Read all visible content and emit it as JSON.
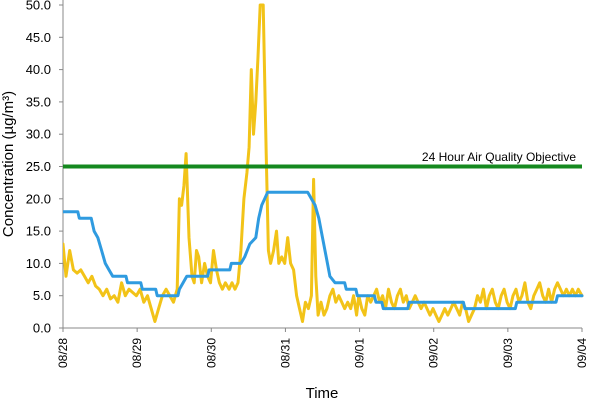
{
  "chart_data": {
    "type": "line",
    "title": "",
    "xlabel": "Time",
    "ylabel": "Concentration (µg/m³)",
    "ylim": [
      0,
      50
    ],
    "y_ticks": [
      "0.0",
      "5.0",
      "10.0",
      "15.0",
      "20.0",
      "25.0",
      "30.0",
      "35.0",
      "40.0",
      "45.0",
      "50.0"
    ],
    "x_ticks": [
      "08/28",
      "08/29",
      "08/30",
      "08/31",
      "09/01",
      "09/02",
      "09/03",
      "09/04"
    ],
    "x_domain": [
      0,
      7
    ],
    "grid": false,
    "colors": {
      "yellow": "#f2c318",
      "blue": "#2f9be0",
      "objective": "#15891f"
    },
    "objective": {
      "value": 25,
      "label": "24 Hour Air Quality Objective"
    },
    "series": [
      {
        "color": "#f2c318",
        "points": [
          [
            0.0,
            13
          ],
          [
            0.04,
            8
          ],
          [
            0.09,
            12
          ],
          [
            0.14,
            9
          ],
          [
            0.19,
            8.5
          ],
          [
            0.24,
            9
          ],
          [
            0.29,
            8
          ],
          [
            0.34,
            7
          ],
          [
            0.39,
            8
          ],
          [
            0.44,
            6.5
          ],
          [
            0.49,
            6
          ],
          [
            0.54,
            5
          ],
          [
            0.59,
            6
          ],
          [
            0.64,
            4.5
          ],
          [
            0.69,
            5
          ],
          [
            0.74,
            4
          ],
          [
            0.79,
            7
          ],
          [
            0.84,
            5
          ],
          [
            0.89,
            6
          ],
          [
            0.94,
            5.5
          ],
          [
            0.99,
            5
          ],
          [
            1.04,
            6
          ],
          [
            1.09,
            4
          ],
          [
            1.14,
            5
          ],
          [
            1.19,
            3
          ],
          [
            1.24,
            1
          ],
          [
            1.29,
            3
          ],
          [
            1.34,
            5
          ],
          [
            1.39,
            6
          ],
          [
            1.44,
            5
          ],
          [
            1.49,
            4
          ],
          [
            1.54,
            6
          ],
          [
            1.57,
            20
          ],
          [
            1.6,
            19
          ],
          [
            1.63,
            22
          ],
          [
            1.66,
            27
          ],
          [
            1.7,
            14
          ],
          [
            1.74,
            8
          ],
          [
            1.77,
            7
          ],
          [
            1.8,
            12
          ],
          [
            1.83,
            11
          ],
          [
            1.87,
            7
          ],
          [
            1.91,
            10
          ],
          [
            1.95,
            8
          ],
          [
            1.99,
            7
          ],
          [
            2.03,
            12
          ],
          [
            2.07,
            9
          ],
          [
            2.11,
            7
          ],
          [
            2.15,
            6
          ],
          [
            2.19,
            7
          ],
          [
            2.24,
            6
          ],
          [
            2.28,
            7
          ],
          [
            2.32,
            6
          ],
          [
            2.36,
            7
          ],
          [
            2.4,
            12
          ],
          [
            2.44,
            20
          ],
          [
            2.48,
            24
          ],
          [
            2.51,
            28
          ],
          [
            2.54,
            40
          ],
          [
            2.57,
            30
          ],
          [
            2.6,
            35
          ],
          [
            2.63,
            42
          ],
          [
            2.66,
            50
          ],
          [
            2.7,
            50
          ],
          [
            2.74,
            27
          ],
          [
            2.77,
            12
          ],
          [
            2.8,
            10
          ],
          [
            2.84,
            12
          ],
          [
            2.88,
            15
          ],
          [
            2.91,
            10
          ],
          [
            2.95,
            11
          ],
          [
            2.99,
            10
          ],
          [
            3.03,
            14
          ],
          [
            3.07,
            10
          ],
          [
            3.11,
            9
          ],
          [
            3.15,
            5
          ],
          [
            3.19,
            3
          ],
          [
            3.23,
            1
          ],
          [
            3.27,
            4
          ],
          [
            3.31,
            3
          ],
          [
            3.35,
            5
          ],
          [
            3.38,
            23
          ],
          [
            3.41,
            8
          ],
          [
            3.44,
            2
          ],
          [
            3.48,
            4
          ],
          [
            3.52,
            2
          ],
          [
            3.56,
            3
          ],
          [
            3.6,
            5
          ],
          [
            3.64,
            6
          ],
          [
            3.68,
            4
          ],
          [
            3.72,
            5
          ],
          [
            3.76,
            4
          ],
          [
            3.8,
            3
          ],
          [
            3.84,
            4
          ],
          [
            3.88,
            3
          ],
          [
            3.92,
            5
          ],
          [
            3.96,
            2
          ],
          [
            3.99,
            5
          ],
          [
            4.03,
            3
          ],
          [
            4.07,
            2
          ],
          [
            4.11,
            5
          ],
          [
            4.15,
            4
          ],
          [
            4.19,
            5
          ],
          [
            4.23,
            6
          ],
          [
            4.27,
            4
          ],
          [
            4.31,
            5
          ],
          [
            4.35,
            3
          ],
          [
            4.39,
            6
          ],
          [
            4.43,
            4
          ],
          [
            4.47,
            3
          ],
          [
            4.51,
            5
          ],
          [
            4.55,
            6
          ],
          [
            4.59,
            4
          ],
          [
            4.63,
            5
          ],
          [
            4.67,
            3
          ],
          [
            4.71,
            4
          ],
          [
            4.75,
            5
          ],
          [
            4.79,
            4
          ],
          [
            4.83,
            3
          ],
          [
            4.87,
            4
          ],
          [
            4.91,
            3
          ],
          [
            4.95,
            2
          ],
          [
            4.99,
            3
          ],
          [
            5.03,
            2
          ],
          [
            5.07,
            1
          ],
          [
            5.11,
            2
          ],
          [
            5.15,
            3
          ],
          [
            5.19,
            2
          ],
          [
            5.23,
            3
          ],
          [
            5.27,
            4
          ],
          [
            5.31,
            3
          ],
          [
            5.35,
            2
          ],
          [
            5.39,
            4
          ],
          [
            5.43,
            3
          ],
          [
            5.47,
            1
          ],
          [
            5.51,
            2
          ],
          [
            5.55,
            3
          ],
          [
            5.59,
            5
          ],
          [
            5.63,
            4
          ],
          [
            5.67,
            6
          ],
          [
            5.71,
            3
          ],
          [
            5.75,
            5
          ],
          [
            5.79,
            6
          ],
          [
            5.83,
            4
          ],
          [
            5.87,
            3
          ],
          [
            5.91,
            5
          ],
          [
            5.95,
            6
          ],
          [
            5.99,
            4
          ],
          [
            6.03,
            3
          ],
          [
            6.07,
            5
          ],
          [
            6.11,
            6
          ],
          [
            6.15,
            4
          ],
          [
            6.19,
            5
          ],
          [
            6.23,
            7
          ],
          [
            6.27,
            4
          ],
          [
            6.31,
            3
          ],
          [
            6.35,
            5
          ],
          [
            6.39,
            6
          ],
          [
            6.43,
            7
          ],
          [
            6.47,
            5
          ],
          [
            6.51,
            4
          ],
          [
            6.55,
            6
          ],
          [
            6.59,
            4
          ],
          [
            6.63,
            6
          ],
          [
            6.67,
            7
          ],
          [
            6.71,
            6
          ],
          [
            6.75,
            5
          ],
          [
            6.79,
            6
          ],
          [
            6.83,
            5
          ],
          [
            6.87,
            6
          ],
          [
            6.91,
            5
          ],
          [
            6.95,
            6
          ],
          [
            7.0,
            5
          ]
        ]
      },
      {
        "color": "#2f9be0",
        "points": [
          [
            0.0,
            18
          ],
          [
            0.2,
            18
          ],
          [
            0.22,
            17
          ],
          [
            0.38,
            17
          ],
          [
            0.42,
            15
          ],
          [
            0.47,
            14
          ],
          [
            0.52,
            12
          ],
          [
            0.57,
            10
          ],
          [
            0.62,
            9
          ],
          [
            0.67,
            8
          ],
          [
            0.85,
            8
          ],
          [
            0.87,
            7
          ],
          [
            1.05,
            7
          ],
          [
            1.07,
            6
          ],
          [
            1.25,
            6
          ],
          [
            1.27,
            5
          ],
          [
            1.55,
            5
          ],
          [
            1.57,
            6
          ],
          [
            1.62,
            7
          ],
          [
            1.67,
            8
          ],
          [
            1.95,
            8
          ],
          [
            1.97,
            9
          ],
          [
            2.25,
            9
          ],
          [
            2.27,
            10
          ],
          [
            2.4,
            10
          ],
          [
            2.45,
            11
          ],
          [
            2.52,
            13
          ],
          [
            2.6,
            14
          ],
          [
            2.64,
            17
          ],
          [
            2.68,
            19
          ],
          [
            2.72,
            20
          ],
          [
            2.76,
            21
          ],
          [
            3.3,
            21
          ],
          [
            3.35,
            20
          ],
          [
            3.4,
            19
          ],
          [
            3.45,
            17
          ],
          [
            3.5,
            14
          ],
          [
            3.55,
            11
          ],
          [
            3.6,
            8
          ],
          [
            3.67,
            7
          ],
          [
            3.8,
            7
          ],
          [
            3.82,
            6
          ],
          [
            3.95,
            6
          ],
          [
            3.97,
            5
          ],
          [
            4.2,
            5
          ],
          [
            4.22,
            4
          ],
          [
            4.3,
            4
          ],
          [
            4.32,
            3
          ],
          [
            4.65,
            3
          ],
          [
            4.67,
            4
          ],
          [
            5.4,
            4
          ],
          [
            5.42,
            3
          ],
          [
            6.1,
            3
          ],
          [
            6.12,
            4
          ],
          [
            6.65,
            4
          ],
          [
            6.67,
            5
          ],
          [
            7.0,
            5
          ]
        ]
      }
    ]
  }
}
